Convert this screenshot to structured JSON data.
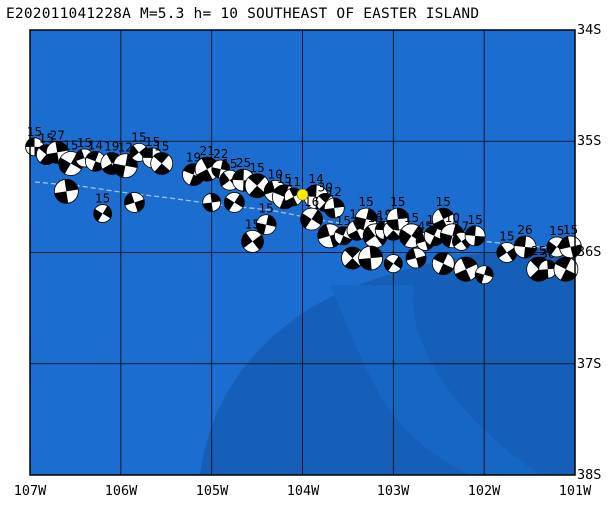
{
  "title": "E202011041228A M=5.3 h= 10 SOUTHEAST OF EASTER ISLAND",
  "lat_labels": [
    "34S",
    "35S",
    "36S",
    "37S",
    "38S"
  ],
  "lon_labels": [
    "107W",
    "106W",
    "105W",
    "104W",
    "103W",
    "102W",
    "101W"
  ],
  "colors": {
    "ocean": "#1b6ecf",
    "deep": "#155fb8",
    "grid": "#000000",
    "epicenter": "#ffee00",
    "fault_trace": "#9ec3ea"
  },
  "epicenter": {
    "lon": -104.0,
    "lat": -35.48
  },
  "mechanisms": [
    {
      "lon": -106.95,
      "lat": -35.05,
      "label": "15"
    },
    {
      "lon": -106.82,
      "lat": -35.12,
      "label": "15"
    },
    {
      "lon": -106.7,
      "lat": -35.1,
      "label": "27"
    },
    {
      "lon": -106.55,
      "lat": -35.2,
      "label": "15"
    },
    {
      "lon": -106.4,
      "lat": -35.15,
      "label": "15"
    },
    {
      "lon": -106.28,
      "lat": -35.18,
      "label": "14"
    },
    {
      "lon": -106.1,
      "lat": -35.2,
      "label": "19"
    },
    {
      "lon": -105.95,
      "lat": -35.22,
      "label": "12"
    },
    {
      "lon": -105.8,
      "lat": -35.1,
      "label": "15"
    },
    {
      "lon": -105.65,
      "lat": -35.15,
      "label": "15"
    },
    {
      "lon": -105.55,
      "lat": -35.2,
      "label": "15"
    },
    {
      "lon": -106.6,
      "lat": -35.45,
      "label": ""
    },
    {
      "lon": -106.2,
      "lat": -35.65,
      "label": "15"
    },
    {
      "lon": -105.85,
      "lat": -35.55,
      "label": ""
    },
    {
      "lon": -105.2,
      "lat": -35.3,
      "label": "19"
    },
    {
      "lon": -105.05,
      "lat": -35.25,
      "label": "21"
    },
    {
      "lon": -104.9,
      "lat": -35.25,
      "label": "22"
    },
    {
      "lon": -104.8,
      "lat": -35.35,
      "label": "15"
    },
    {
      "lon": -104.65,
      "lat": -35.35,
      "label": "25"
    },
    {
      "lon": -104.5,
      "lat": -35.4,
      "label": "15"
    },
    {
      "lon": -105.0,
      "lat": -35.55,
      "label": ""
    },
    {
      "lon": -104.75,
      "lat": -35.55,
      "label": ""
    },
    {
      "lon": -104.3,
      "lat": -35.45,
      "label": "10"
    },
    {
      "lon": -104.2,
      "lat": -35.5,
      "label": "15"
    },
    {
      "lon": -104.1,
      "lat": -35.5,
      "label": "11"
    },
    {
      "lon": -104.4,
      "lat": -35.75,
      "label": "15"
    },
    {
      "lon": -104.55,
      "lat": -35.9,
      "label": "15"
    },
    {
      "lon": -103.85,
      "lat": -35.5,
      "label": "14"
    },
    {
      "lon": -103.75,
      "lat": -35.55,
      "label": "30"
    },
    {
      "lon": -103.65,
      "lat": -35.6,
      "label": "12"
    },
    {
      "lon": -103.9,
      "lat": -35.7,
      "label": "16"
    },
    {
      "lon": -103.7,
      "lat": -35.85,
      "label": ""
    },
    {
      "lon": -103.55,
      "lat": -35.85,
      "label": "15"
    },
    {
      "lon": -103.4,
      "lat": -35.8,
      "label": "11"
    },
    {
      "lon": -103.3,
      "lat": -35.7,
      "label": "15"
    },
    {
      "lon": -103.2,
      "lat": -35.85,
      "label": "16"
    },
    {
      "lon": -103.1,
      "lat": -35.8,
      "label": "15"
    },
    {
      "lon": -103.0,
      "lat": -35.8,
      "label": "20"
    },
    {
      "lon": -102.95,
      "lat": -35.7,
      "label": "15"
    },
    {
      "lon": -102.8,
      "lat": -35.85,
      "label": "15"
    },
    {
      "lon": -102.65,
      "lat": -35.9,
      "label": "45"
    },
    {
      "lon": -102.55,
      "lat": -35.85,
      "label": "16"
    },
    {
      "lon": -102.45,
      "lat": -35.7,
      "label": "15"
    },
    {
      "lon": -102.35,
      "lat": -35.85,
      "label": "10"
    },
    {
      "lon": -102.25,
      "lat": -35.9,
      "label": "17"
    },
    {
      "lon": -102.1,
      "lat": -35.85,
      "label": "15"
    },
    {
      "lon": -103.45,
      "lat": -36.05,
      "label": ""
    },
    {
      "lon": -103.25,
      "lat": -36.05,
      "label": ""
    },
    {
      "lon": -103.0,
      "lat": -36.1,
      "label": ""
    },
    {
      "lon": -102.75,
      "lat": -36.05,
      "label": ""
    },
    {
      "lon": -102.45,
      "lat": -36.1,
      "label": ""
    },
    {
      "lon": -102.2,
      "lat": -36.15,
      "label": ""
    },
    {
      "lon": -102.0,
      "lat": -36.2,
      "label": ""
    },
    {
      "lon": -101.75,
      "lat": -36.0,
      "label": "15"
    },
    {
      "lon": -101.55,
      "lat": -35.95,
      "label": "26"
    },
    {
      "lon": -101.4,
      "lat": -36.15,
      "label": "25"
    },
    {
      "lon": -101.3,
      "lat": -36.15,
      "label": "30"
    },
    {
      "lon": -101.2,
      "lat": -35.95,
      "label": "15"
    },
    {
      "lon": -101.05,
      "lat": -35.95,
      "label": "15"
    },
    {
      "lon": -101.1,
      "lat": -36.15,
      "label": ""
    }
  ]
}
